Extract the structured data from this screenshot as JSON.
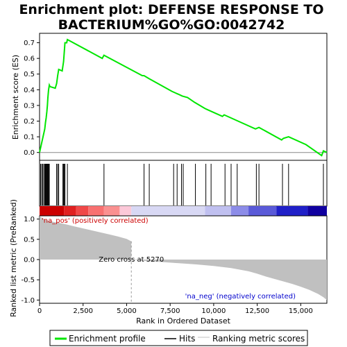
{
  "title_line1": "Enrichment plot: DEFENSE RESPONSE TO",
  "title_line2": "BACTERIUM%GO%GO:0042742",
  "ylabel_es": "Enrichment score (ES)",
  "ylabel_metric": "Ranked list metric (PreRanked)",
  "xlabel": "Rank in Ordered Dataset",
  "pos_label": "'na_pos' (positively correlated)",
  "neg_label": "'na_neg' (negatively correlated)",
  "zero_cross_label": "Zero cross at 5270",
  "legend": {
    "enrichment": "Enrichment profile",
    "hits": "Hits",
    "ranking": "Ranking metric scores"
  },
  "colors": {
    "enrichment_line": "#00e600",
    "hits": "#000000",
    "metric_fill": "#c0c0c0",
    "pos_label": "#cc0000",
    "neg_label": "#0000cc"
  },
  "chart_data": {
    "type": "line",
    "x_range": [
      0,
      16500
    ],
    "x_ticks": [
      0,
      2500,
      5000,
      7500,
      10000,
      12500,
      15000
    ],
    "x_tick_labels": [
      "0",
      "2,500",
      "5,000",
      "7,500",
      "10,000",
      "12,500",
      "15,000"
    ],
    "es_ylim": [
      -0.05,
      0.76
    ],
    "es_ticks": [
      0.0,
      0.1,
      0.2,
      0.3,
      0.4,
      0.5,
      0.6,
      0.7
    ],
    "es_tick_labels": [
      "0.0",
      "0.1",
      "0.2",
      "0.3",
      "0.4",
      "0.5",
      "0.6",
      "0.7"
    ],
    "metric_ylim": [
      -1.08,
      1.08
    ],
    "metric_ticks": [
      1.0,
      0.5,
      0.0,
      -0.5,
      -1.0
    ],
    "metric_tick_labels": [
      "1.0",
      "0.5",
      "0.0",
      "-0.5",
      "-1.0"
    ],
    "zero_cross": 5270,
    "enrichment_profile": {
      "x": [
        0,
        60,
        120,
        180,
        240,
        300,
        340,
        380,
        420,
        450,
        480,
        520,
        560,
        600,
        900,
        980,
        1040,
        1100,
        1300,
        1340,
        1380,
        1420,
        1460,
        1560,
        1600,
        3600,
        3700,
        5900,
        6000,
        6300,
        7600,
        7800,
        8000,
        8200,
        8500,
        8900,
        9500,
        9700,
        10500,
        10600,
        11000,
        11400,
        12400,
        12600,
        13900,
        14000,
        14300,
        15300,
        16200,
        16300,
        16500
      ],
      "y": [
        0.0,
        0.03,
        0.06,
        0.09,
        0.12,
        0.15,
        0.19,
        0.22,
        0.26,
        0.3,
        0.35,
        0.4,
        0.43,
        0.42,
        0.41,
        0.44,
        0.49,
        0.53,
        0.52,
        0.55,
        0.58,
        0.64,
        0.7,
        0.7,
        0.72,
        0.6,
        0.62,
        0.49,
        0.49,
        0.47,
        0.39,
        0.38,
        0.37,
        0.36,
        0.35,
        0.32,
        0.28,
        0.27,
        0.23,
        0.24,
        0.22,
        0.2,
        0.15,
        0.16,
        0.08,
        0.09,
        0.1,
        0.05,
        -0.02,
        0.01,
        0.0
      ]
    },
    "hits": [
      60,
      120,
      180,
      240,
      300,
      340,
      380,
      420,
      450,
      480,
      520,
      560,
      980,
      1040,
      1100,
      1340,
      1380,
      1420,
      1460,
      1600,
      3700,
      6000,
      6300,
      7700,
      7900,
      8150,
      8250,
      8950,
      9550,
      9850,
      10650,
      11000,
      11350,
      12450,
      12600,
      13950,
      14300,
      16300
    ],
    "metric_profile": {
      "x": [
        0,
        150,
        400,
        800,
        1200,
        1600,
        2000,
        2500,
        3000,
        3500,
        4000,
        4500,
        5000,
        5269,
        5271,
        6000,
        7000,
        8000,
        9000,
        10000,
        11000,
        12000,
        12500,
        13000,
        13500,
        14000,
        14500,
        15000,
        15500,
        16000,
        16300,
        16500
      ],
      "y": [
        1.08,
        1.02,
        0.97,
        0.93,
        0.9,
        0.86,
        0.82,
        0.77,
        0.72,
        0.67,
        0.62,
        0.57,
        0.51,
        0.45,
        0.0,
        -0.03,
        -0.06,
        -0.09,
        -0.12,
        -0.16,
        -0.21,
        -0.29,
        -0.35,
        -0.42,
        -0.48,
        -0.54,
        -0.6,
        -0.67,
        -0.75,
        -0.85,
        -0.93,
        -1.0
      ]
    },
    "color_bar": [
      {
        "from": 0,
        "to": 1400,
        "color": "#cc0000"
      },
      {
        "from": 1400,
        "to": 2100,
        "color": "#e02020"
      },
      {
        "from": 2100,
        "to": 2800,
        "color": "#f04848"
      },
      {
        "from": 2800,
        "to": 3700,
        "color": "#f87070"
      },
      {
        "from": 3700,
        "to": 4600,
        "color": "#fa9090"
      },
      {
        "from": 4600,
        "to": 5270,
        "color": "#fcc8d8"
      },
      {
        "from": 5270,
        "to": 9500,
        "color": "#d8d8f4"
      },
      {
        "from": 9500,
        "to": 11000,
        "color": "#c0c0f0"
      },
      {
        "from": 11000,
        "to": 12000,
        "color": "#8c8ce8"
      },
      {
        "from": 12000,
        "to": 13600,
        "color": "#5a5ad8"
      },
      {
        "from": 13600,
        "to": 15400,
        "color": "#2020c8"
      },
      {
        "from": 15400,
        "to": 16500,
        "color": "#1000a0"
      }
    ]
  }
}
